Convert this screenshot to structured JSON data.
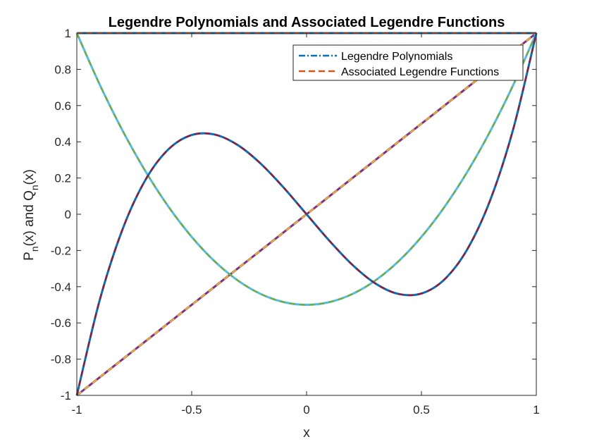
{
  "chart_data": {
    "type": "line",
    "title": "Legendre Polynomials and Associated Legendre Functions",
    "xlabel": "x",
    "ylabel": "P_n(x) and Q_n(x)",
    "xlim": [
      -1,
      1
    ],
    "ylim": [
      -1,
      1
    ],
    "x_ticks": [
      "-1",
      "-0.5",
      "0",
      "0.5",
      "1"
    ],
    "y_ticks": [
      "-1",
      "-0.8",
      "-0.6",
      "-0.4",
      "-0.2",
      "0",
      "0.2",
      "0.4",
      "0.6",
      "0.8",
      "1"
    ],
    "grid": false,
    "legend_position": "top-right",
    "legend": [
      {
        "label": "Legendre Polynomials",
        "color": "#0072bd"
      },
      {
        "label": "Associated Legendre Functions",
        "color": "#d95319"
      }
    ],
    "x": [
      -1,
      -0.9,
      -0.8,
      -0.7,
      -0.6,
      -0.5,
      -0.4,
      -0.3,
      -0.2,
      -0.1,
      0,
      0.1,
      0.2,
      0.3,
      0.4,
      0.5,
      0.6,
      0.7,
      0.8,
      0.9,
      1
    ],
    "series": [
      {
        "degree": 0,
        "color": "#0072bd",
        "dash_color": "#d95319",
        "values": [
          1,
          1,
          1,
          1,
          1,
          1,
          1,
          1,
          1,
          1,
          1,
          1,
          1,
          1,
          1,
          1,
          1,
          1,
          1,
          1,
          1
        ]
      },
      {
        "degree": 1,
        "color": "#7e2f8e",
        "dash_color": "#edb120",
        "values": [
          -1,
          -0.9,
          -0.8,
          -0.7,
          -0.6,
          -0.5,
          -0.4,
          -0.3,
          -0.2,
          -0.1,
          0,
          0.1,
          0.2,
          0.3,
          0.4,
          0.5,
          0.6,
          0.7,
          0.8,
          0.9,
          1
        ]
      },
      {
        "degree": 2,
        "color": "#4dbeee",
        "dash_color": "#77ac30",
        "values": [
          1,
          0.715,
          0.46,
          0.235,
          0.04,
          -0.125,
          -0.26,
          -0.365,
          -0.44,
          -0.485,
          -0.5,
          -0.485,
          -0.44,
          -0.365,
          -0.26,
          -0.125,
          0.04,
          0.235,
          0.46,
          0.715,
          1
        ]
      },
      {
        "degree": 3,
        "color": "#0072bd",
        "dash_color": "#a2142f",
        "values": [
          -1,
          -0.4725,
          -0.08,
          0.1925,
          0.36,
          0.4375,
          0.44,
          0.3825,
          0.28,
          0.1475,
          0,
          -0.1475,
          -0.28,
          -0.3825,
          -0.44,
          -0.4375,
          -0.36,
          -0.1925,
          0.08,
          0.4725,
          1
        ]
      }
    ]
  }
}
